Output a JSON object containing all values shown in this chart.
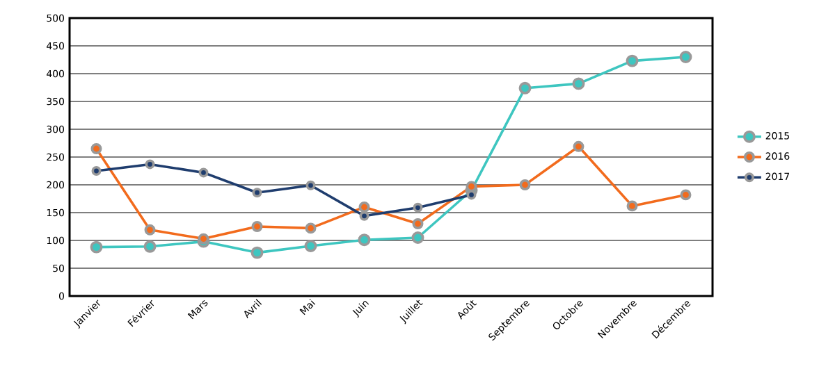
{
  "chart_data": {
    "type": "line",
    "categories": [
      "Janvier",
      "Février",
      "Mars",
      "Avril",
      "Mai",
      "Juin",
      "Juillet",
      "Août",
      "Septembre",
      "Octobre",
      "Novembre",
      "Décembre"
    ],
    "series": [
      {
        "name": "2015",
        "color": "#3ec6c0",
        "values": [
          88,
          89,
          98,
          78,
          90,
          101,
          105,
          190,
          374,
          382,
          423,
          430
        ]
      },
      {
        "name": "2016",
        "color": "#f26b1d",
        "values": [
          265,
          119,
          103,
          125,
          122,
          160,
          130,
          197,
          200,
          269,
          162,
          182
        ]
      },
      {
        "name": "2017",
        "color": "#1f3d6e",
        "values": [
          225,
          237,
          222,
          186,
          199,
          144,
          159,
          182,
          null,
          null,
          null,
          null
        ]
      }
    ],
    "ylim": [
      0,
      500
    ],
    "yticks": [
      0,
      50,
      100,
      150,
      200,
      250,
      300,
      350,
      400,
      450,
      500
    ],
    "grid": "y",
    "legend": "right",
    "marker": "circle",
    "line_style": "solid"
  }
}
